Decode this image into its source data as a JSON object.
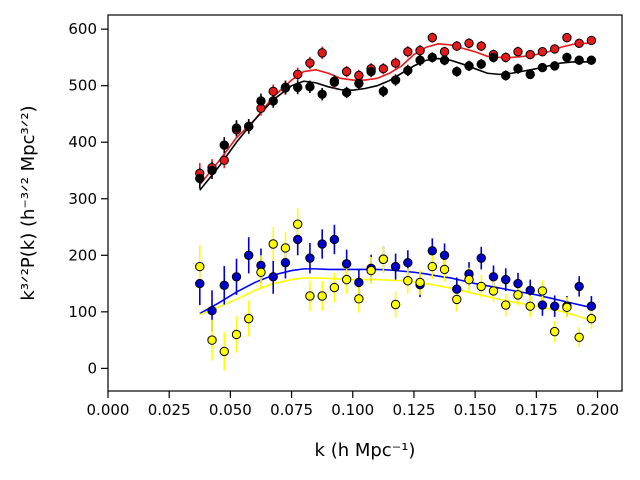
{
  "chart_data": {
    "type": "scatter",
    "xlabel": "k (h Mpc⁻¹)",
    "ylabel": "k³ᐟ²P(k) (h⁻³ᐟ² Mpc³ᐟ²)",
    "xlim": [
      0.0,
      0.21
    ],
    "ylim": [
      -40,
      625
    ],
    "xticks": [
      "0.000",
      "0.025",
      "0.050",
      "0.075",
      "0.100",
      "0.125",
      "0.150",
      "0.175",
      "0.200"
    ],
    "xtick_values": [
      0.0,
      0.025,
      0.05,
      0.075,
      0.1,
      0.125,
      0.15,
      0.175,
      0.2
    ],
    "yticks": [
      "0",
      "100",
      "200",
      "300",
      "400",
      "500",
      "600"
    ],
    "ytick_values": [
      0,
      100,
      200,
      300,
      400,
      500,
      600
    ],
    "grid": false,
    "series": [
      {
        "color": "#e41a1c",
        "marker_edge": "#000000",
        "x": [
          0.0375,
          0.0425,
          0.0475,
          0.0525,
          0.0575,
          0.0625,
          0.0675,
          0.0725,
          0.0775,
          0.0825,
          0.0875,
          0.0925,
          0.0975,
          0.1025,
          0.1075,
          0.1125,
          0.1175,
          0.1225,
          0.1275,
          0.1325,
          0.1375,
          0.1425,
          0.1475,
          0.1525,
          0.1575,
          0.1625,
          0.1675,
          0.1725,
          0.1775,
          0.1825,
          0.1875,
          0.1925,
          0.1975
        ],
        "y": [
          345,
          355,
          368,
          422,
          428,
          460,
          490,
          496,
          520,
          540,
          558,
          506,
          525,
          518,
          530,
          530,
          540,
          560,
          562,
          585,
          560,
          570,
          575,
          570,
          555,
          550,
          560,
          555,
          560,
          565,
          585,
          575,
          580
        ],
        "err": [
          18,
          15,
          14,
          14,
          13,
          13,
          12,
          12,
          12,
          11,
          11,
          11,
          10,
          10,
          10,
          10,
          10,
          10,
          10,
          9,
          9,
          9,
          9,
          9,
          9,
          9,
          9,
          8,
          8,
          8,
          8,
          8,
          8
        ]
      },
      {
        "color": "#000000",
        "marker_edge": "#000000",
        "x": [
          0.0375,
          0.0425,
          0.0475,
          0.0525,
          0.0575,
          0.0625,
          0.0675,
          0.0725,
          0.0775,
          0.0825,
          0.0875,
          0.0925,
          0.0975,
          0.1025,
          0.1075,
          0.1125,
          0.1175,
          0.1225,
          0.1275,
          0.1325,
          0.1375,
          0.1425,
          0.1475,
          0.1525,
          0.1575,
          0.1625,
          0.1675,
          0.1725,
          0.1775,
          0.1825,
          0.1875,
          0.1925,
          0.1975
        ],
        "y": [
          336,
          350,
          395,
          425,
          428,
          473,
          473,
          497,
          497,
          498,
          485,
          508,
          488,
          504,
          525,
          490,
          510,
          527,
          545,
          550,
          545,
          525,
          535,
          538,
          550,
          518,
          530,
          520,
          532,
          535,
          550,
          545,
          545
        ],
        "err": [
          18,
          15,
          14,
          14,
          13,
          13,
          12,
          12,
          12,
          11,
          11,
          11,
          10,
          10,
          10,
          10,
          10,
          10,
          10,
          9,
          9,
          9,
          9,
          9,
          9,
          9,
          9,
          8,
          8,
          8,
          8,
          8,
          8
        ]
      },
      {
        "color": "#0000cc",
        "marker_edge": "#000000",
        "x": [
          0.0375,
          0.0425,
          0.0475,
          0.0525,
          0.0575,
          0.0625,
          0.0675,
          0.0725,
          0.0775,
          0.0825,
          0.0875,
          0.0925,
          0.0975,
          0.1025,
          0.1075,
          0.1125,
          0.1175,
          0.1225,
          0.1275,
          0.1325,
          0.1375,
          0.1425,
          0.1475,
          0.1525,
          0.1575,
          0.1625,
          0.1675,
          0.1725,
          0.1775,
          0.1825,
          0.1875,
          0.1925,
          0.1975
        ],
        "y": [
          150,
          102,
          147,
          162,
          200,
          182,
          162,
          187,
          228,
          195,
          220,
          228,
          185,
          152,
          177,
          193,
          180,
          187,
          148,
          208,
          200,
          140,
          167,
          195,
          162,
          157,
          150,
          138,
          112,
          110,
          110,
          145,
          110
        ],
        "err": [
          38,
          36,
          34,
          32,
          32,
          30,
          30,
          28,
          28,
          27,
          26,
          26,
          25,
          24,
          24,
          23,
          23,
          22,
          22,
          22,
          21,
          21,
          21,
          20,
          20,
          20,
          19,
          19,
          19,
          19,
          18,
          18,
          18
        ]
      },
      {
        "color": "#ffff00",
        "marker_edge": "#000000",
        "x": [
          0.0375,
          0.0425,
          0.0475,
          0.0525,
          0.0575,
          0.0625,
          0.0675,
          0.0725,
          0.0775,
          0.0825,
          0.0875,
          0.0925,
          0.0975,
          0.1025,
          0.1075,
          0.1125,
          0.1175,
          0.1225,
          0.1275,
          0.1325,
          0.1375,
          0.1425,
          0.1475,
          0.1525,
          0.1575,
          0.1625,
          0.1675,
          0.1725,
          0.1775,
          0.1825,
          0.1875,
          0.1925,
          0.1975
        ],
        "y": [
          180,
          50,
          30,
          60,
          88,
          170,
          220,
          213,
          255,
          128,
          128,
          143,
          157,
          123,
          173,
          193,
          113,
          155,
          152,
          180,
          175,
          122,
          157,
          145,
          137,
          112,
          130,
          110,
          137,
          65,
          108,
          55,
          88
        ],
        "err": [
          38,
          36,
          34,
          32,
          32,
          30,
          30,
          28,
          28,
          27,
          26,
          26,
          25,
          24,
          24,
          23,
          23,
          22,
          22,
          22,
          21,
          21,
          21,
          20,
          20,
          20,
          19,
          19,
          19,
          19,
          18,
          18,
          18
        ]
      }
    ],
    "curves": [
      {
        "color": "#e41a1c",
        "x": [
          0.0375,
          0.045,
          0.0525,
          0.06,
          0.0675,
          0.075,
          0.08,
          0.085,
          0.09,
          0.095,
          0.1,
          0.105,
          0.11,
          0.115,
          0.12,
          0.125,
          0.13,
          0.135,
          0.14,
          0.145,
          0.15,
          0.155,
          0.16,
          0.165,
          0.17,
          0.175,
          0.18,
          0.185,
          0.19,
          0.195,
          0.1975
        ],
        "y": [
          325,
          365,
          408,
          440,
          480,
          510,
          525,
          528,
          522,
          513,
          510,
          510,
          513,
          522,
          535,
          555,
          568,
          574,
          572,
          566,
          560,
          552,
          550,
          550,
          552,
          555,
          560,
          568,
          573,
          575,
          575
        ]
      },
      {
        "color": "#000000",
        "x": [
          0.0375,
          0.045,
          0.0525,
          0.06,
          0.0675,
          0.075,
          0.08,
          0.085,
          0.09,
          0.095,
          0.1,
          0.105,
          0.11,
          0.115,
          0.12,
          0.125,
          0.13,
          0.135,
          0.14,
          0.145,
          0.15,
          0.155,
          0.16,
          0.165,
          0.17,
          0.175,
          0.18,
          0.185,
          0.19,
          0.195,
          0.1975
        ],
        "y": [
          315,
          355,
          400,
          440,
          475,
          500,
          508,
          505,
          498,
          493,
          492,
          495,
          500,
          509,
          522,
          535,
          545,
          548,
          545,
          538,
          530,
          522,
          520,
          522,
          526,
          530,
          535,
          540,
          542,
          542,
          542
        ]
      },
      {
        "color": "#0000ff",
        "x": [
          0.0375,
          0.045,
          0.0525,
          0.06,
          0.0675,
          0.075,
          0.08,
          0.085,
          0.09,
          0.095,
          0.1,
          0.105,
          0.11,
          0.115,
          0.12,
          0.125,
          0.13,
          0.135,
          0.14,
          0.145,
          0.15,
          0.155,
          0.16,
          0.165,
          0.17,
          0.175,
          0.18,
          0.185,
          0.19,
          0.195,
          0.1975
        ],
        "y": [
          97,
          115,
          135,
          152,
          165,
          173,
          176,
          176,
          175,
          175,
          175,
          175,
          175,
          174,
          172,
          170,
          167,
          163,
          160,
          155,
          150,
          146,
          142,
          138,
          134,
          130,
          125,
          120,
          115,
          110,
          108
        ]
      },
      {
        "color": "#ffff00",
        "x": [
          0.0375,
          0.045,
          0.0525,
          0.06,
          0.0675,
          0.075,
          0.08,
          0.085,
          0.09,
          0.095,
          0.1,
          0.105,
          0.11,
          0.115,
          0.12,
          0.125,
          0.13,
          0.135,
          0.14,
          0.145,
          0.15,
          0.155,
          0.16,
          0.165,
          0.17,
          0.175,
          0.18,
          0.185,
          0.19,
          0.195,
          0.1975
        ],
        "y": [
          95,
          108,
          122,
          138,
          150,
          157,
          160,
          160,
          159,
          158,
          157,
          157,
          157,
          156,
          155,
          153,
          150,
          146,
          142,
          137,
          132,
          127,
          122,
          118,
          114,
          110,
          106,
          101,
          95,
          88,
          84
        ]
      }
    ]
  }
}
